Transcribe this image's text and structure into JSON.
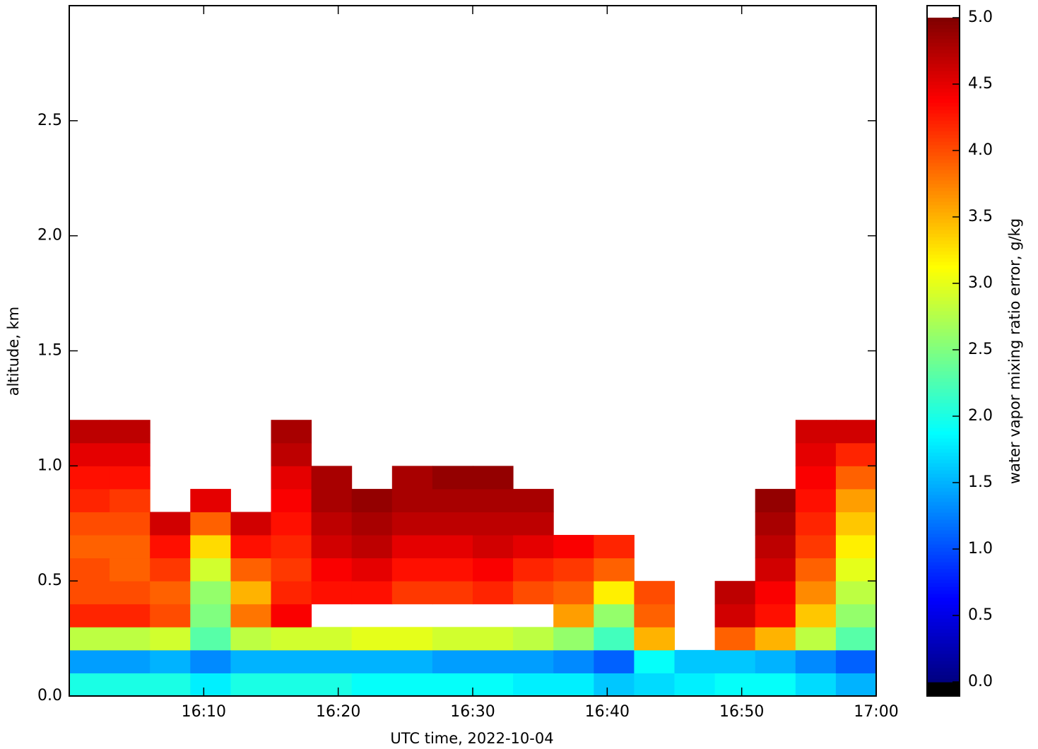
{
  "chart_data": {
    "type": "heatmap",
    "x_label": "UTC time,  2022-10-04",
    "y_label": "altitude, km",
    "colorbar_label": "water vapor mixing ratio error, g/kg",
    "colormap": "jet",
    "xlim": [
      "16:00",
      "17:00"
    ],
    "xticks": [
      "16:10",
      "16:20",
      "16:30",
      "16:40",
      "16:50",
      "17:00"
    ],
    "ylim": [
      0,
      3
    ],
    "yticks": [
      {
        "value": 0,
        "label": "0.0"
      },
      0.5,
      {
        "value": 1,
        "label": "1.0"
      },
      1.5,
      {
        "value": 2,
        "label": "2.0"
      },
      2.5
    ],
    "clim": [
      0,
      5
    ],
    "cticks": [
      {
        "value": 0,
        "label": "0.0"
      },
      0.5,
      {
        "value": 1,
        "label": "1.0"
      },
      1.5,
      {
        "value": 2,
        "label": "2.0"
      },
      2.5,
      {
        "value": 3,
        "label": "3.0"
      },
      3.5,
      {
        "value": 4,
        "label": "4.0"
      },
      4.5,
      {
        "value": 5,
        "label": "5.0"
      }
    ],
    "x_edges": [
      "16:00",
      "16:03",
      "16:06",
      "16:09",
      "16:12",
      "16:15",
      "16:18",
      "16:21",
      "16:24",
      "16:27",
      "16:30",
      "16:33",
      "16:36",
      "16:39",
      "16:42",
      "16:45",
      "16:48",
      "16:51",
      "16:54",
      "16:57",
      "17:00"
    ],
    "y_edges": [
      0,
      0.1,
      0.2,
      0.3,
      0.4,
      0.5,
      0.6,
      0.7,
      0.8,
      0.9,
      1,
      1.1,
      1.2,
      1.3
    ],
    "z": [
      [
        2.0,
        1.4,
        2.8,
        4.2,
        4.0,
        4.0,
        3.9,
        4.0,
        4.2,
        4.3,
        4.5,
        4.7,
        null
      ],
      [
        2.0,
        1.4,
        2.8,
        4.2,
        4.0,
        3.9,
        3.9,
        4.0,
        4.1,
        4.3,
        4.5,
        4.7,
        null
      ],
      [
        2.0,
        1.5,
        2.9,
        4.0,
        3.9,
        4.1,
        4.3,
        4.6,
        null,
        null,
        null,
        null,
        null
      ],
      [
        1.8,
        1.3,
        2.3,
        2.5,
        2.6,
        2.9,
        3.3,
        3.9,
        4.5,
        null,
        null,
        null,
        null
      ],
      [
        2.0,
        1.5,
        2.8,
        3.8,
        3.5,
        3.9,
        4.3,
        4.6,
        null,
        null,
        null,
        null,
        null
      ],
      [
        2.0,
        1.5,
        2.9,
        4.4,
        4.2,
        4.1,
        4.2,
        4.3,
        4.4,
        4.5,
        4.7,
        4.8,
        null
      ],
      [
        2.0,
        1.5,
        2.9,
        null,
        4.3,
        4.4,
        4.6,
        4.7,
        4.8,
        4.8,
        null,
        null,
        null
      ],
      [
        1.9,
        1.5,
        3.0,
        null,
        4.3,
        4.5,
        4.7,
        4.8,
        4.9,
        null,
        null,
        null,
        null
      ],
      [
        1.9,
        1.5,
        3.0,
        null,
        4.1,
        4.3,
        4.5,
        4.7,
        4.8,
        4.8,
        null,
        null,
        null
      ],
      [
        1.9,
        1.4,
        2.9,
        null,
        4.1,
        4.3,
        4.5,
        4.7,
        4.8,
        4.9,
        null,
        null,
        null
      ],
      [
        1.9,
        1.4,
        2.9,
        null,
        4.2,
        4.4,
        4.6,
        4.7,
        4.8,
        4.9,
        null,
        null,
        null
      ],
      [
        1.8,
        1.4,
        2.8,
        null,
        4.0,
        4.2,
        4.5,
        4.7,
        4.8,
        null,
        null,
        null,
        null
      ],
      [
        1.8,
        1.3,
        2.6,
        3.6,
        3.9,
        4.1,
        4.4,
        null,
        null,
        null,
        null,
        null,
        null
      ],
      [
        1.6,
        1.1,
        2.2,
        2.6,
        3.2,
        3.9,
        4.2,
        null,
        null,
        null,
        null,
        null,
        null
      ],
      [
        1.7,
        1.9,
        3.5,
        3.9,
        4.0,
        null,
        null,
        null,
        null,
        null,
        null,
        null,
        null
      ],
      [
        1.8,
        1.6,
        null,
        null,
        null,
        null,
        null,
        null,
        null,
        null,
        null,
        null,
        null
      ],
      [
        1.9,
        1.6,
        3.9,
        4.6,
        4.7,
        null,
        null,
        null,
        null,
        null,
        null,
        null,
        null
      ],
      [
        1.9,
        1.5,
        3.5,
        4.3,
        4.4,
        4.6,
        4.7,
        4.8,
        4.9,
        null,
        null,
        null,
        null
      ],
      [
        1.7,
        1.3,
        2.8,
        3.4,
        3.7,
        3.9,
        4.1,
        4.2,
        4.3,
        4.4,
        4.5,
        4.6,
        null
      ],
      [
        1.5,
        1.1,
        2.3,
        2.6,
        2.8,
        3.0,
        3.2,
        3.4,
        3.6,
        3.9,
        4.2,
        4.6,
        null
      ]
    ]
  }
}
